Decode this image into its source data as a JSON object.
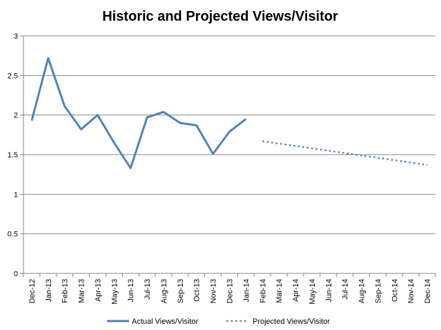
{
  "chart_data": {
    "type": "line",
    "title": "Historic and Projected Views/Visitor",
    "xlabel": "",
    "ylabel": "",
    "categories": [
      "Dec-12",
      "Jan-13",
      "Feb-13",
      "Mar-13",
      "Apr-13",
      "May-13",
      "Jun-13",
      "Jul-13",
      "Aug-13",
      "Sep-13",
      "Oct-13",
      "Nov-13",
      "Dec-13",
      "Jan-14",
      "Feb-14",
      "Mar-14",
      "Apr-14",
      "May-14",
      "Jun-14",
      "Jul-14",
      "Aug-14",
      "Sep-14",
      "Oct-14",
      "Nov-14",
      "Dec-14"
    ],
    "ylim": [
      0,
      3
    ],
    "yticks": [
      "0",
      "0.5",
      "1",
      "1.5",
      "2",
      "2.5",
      "3"
    ],
    "grid": true,
    "legend_position": "bottom",
    "series": [
      {
        "name": "Actual Views/Visitor",
        "style": "solid",
        "color": "#4f81bd",
        "values": [
          1.93,
          2.72,
          2.11,
          1.82,
          2.0,
          1.65,
          1.33,
          1.97,
          2.04,
          1.9,
          1.87,
          1.51,
          1.79,
          1.95,
          null,
          null,
          null,
          null,
          null,
          null,
          null,
          null,
          null,
          null,
          null
        ]
      },
      {
        "name": "Projected Views/Visitor",
        "style": "dotted",
        "color": "#4f81bd",
        "values": [
          null,
          null,
          null,
          null,
          null,
          null,
          null,
          null,
          null,
          null,
          null,
          null,
          null,
          null,
          1.67,
          1.64,
          1.61,
          1.58,
          1.55,
          1.52,
          1.49,
          1.46,
          1.43,
          1.4,
          1.37
        ]
      }
    ]
  }
}
